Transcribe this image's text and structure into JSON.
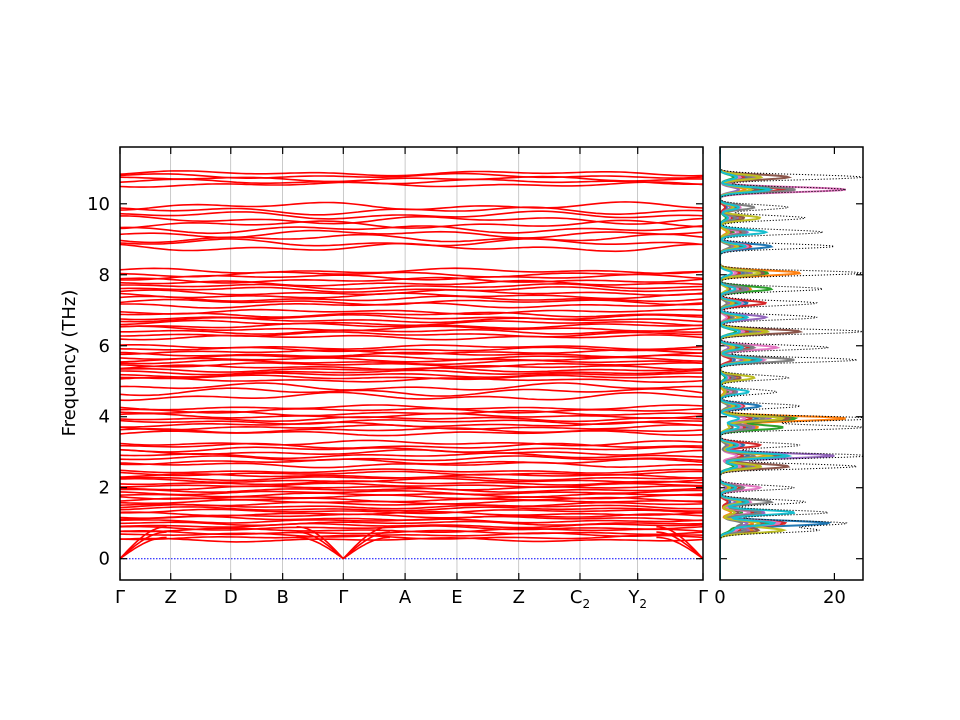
{
  "chart_data": [
    {
      "type": "line",
      "panel": "band-structure",
      "ylabel": "Frequency (THz)",
      "ylim": [
        -0.6,
        11.6
      ],
      "yticks": [
        0,
        2,
        4,
        6,
        8,
        10
      ],
      "kpath_labels": [
        {
          "text": "Γ",
          "sub": "",
          "x": 0
        },
        {
          "text": "Z",
          "sub": "",
          "x": 0.087
        },
        {
          "text": "D",
          "sub": "",
          "x": 0.19
        },
        {
          "text": "B",
          "sub": "",
          "x": 0.279
        },
        {
          "text": "Γ",
          "sub": "",
          "x": 0.383
        },
        {
          "text": "A",
          "sub": "",
          "x": 0.489
        },
        {
          "text": "E",
          "sub": "",
          "x": 0.578
        },
        {
          "text": "Z",
          "sub": "",
          "x": 0.684
        },
        {
          "text": "C",
          "sub": "2",
          "x": 0.789
        },
        {
          "text": "Y",
          "sub": "2",
          "x": 0.888
        },
        {
          "text": "Γ",
          "sub": "",
          "x": 1
        }
      ],
      "band_color": "#ff0000",
      "zero_line_color": "#0000ff",
      "band_groups": [
        {
          "range": [
            0.5,
            2.5
          ],
          "count": 30
        },
        {
          "range": [
            2.6,
            3.3
          ],
          "count": 8
        },
        {
          "range": [
            3.5,
            4.3
          ],
          "count": 10
        },
        {
          "range": [
            4.5,
            4.9
          ],
          "count": 3
        },
        {
          "range": [
            5.0,
            6.0
          ],
          "count": 14
        },
        {
          "range": [
            6.2,
            7.0
          ],
          "count": 10
        },
        {
          "range": [
            7.1,
            8.15
          ],
          "count": 12
        },
        {
          "range": [
            8.7,
            10.0
          ],
          "count": 10
        },
        {
          "range": [
            10.5,
            10.9
          ],
          "count": 5
        }
      ],
      "acoustic_endpoints": [
        0.6,
        0.75,
        0.9
      ]
    },
    {
      "type": "line",
      "panel": "dos",
      "orientation": "horizontal",
      "xlim": [
        0,
        25
      ],
      "xticks": [
        0,
        20
      ],
      "ylim": [
        -0.6,
        11.6
      ],
      "total_dos_style": "dotted",
      "total_dos_color": "#000000",
      "pdos_colors": [
        "#1f77b4",
        "#ff7f0e",
        "#2ca02c",
        "#d62728",
        "#9467bd",
        "#8c564b",
        "#e377c2",
        "#7f7f7f",
        "#bcbd22",
        "#17becf"
      ],
      "peaks": [
        {
          "f": 1.0,
          "total": 22,
          "partial": 19
        },
        {
          "f": 1.3,
          "total": 19,
          "partial": 13
        },
        {
          "f": 0.8,
          "total": 17,
          "partial": 11
        },
        {
          "f": 1.6,
          "total": 15,
          "partial": 9
        },
        {
          "f": 2.0,
          "total": 13,
          "partial": 7
        },
        {
          "f": 2.6,
          "total": 24,
          "partial": 12
        },
        {
          "f": 2.9,
          "total": 26,
          "partial": 20
        },
        {
          "f": 3.2,
          "total": 14,
          "partial": 7
        },
        {
          "f": 3.7,
          "total": 25,
          "partial": 11
        },
        {
          "f": 3.95,
          "total": 27,
          "partial": 22
        },
        {
          "f": 4.3,
          "total": 14,
          "partial": 7
        },
        {
          "f": 4.7,
          "total": 10,
          "partial": 5
        },
        {
          "f": 5.1,
          "total": 12,
          "partial": 6
        },
        {
          "f": 5.6,
          "total": 24,
          "partial": 13
        },
        {
          "f": 5.95,
          "total": 19,
          "partial": 10
        },
        {
          "f": 6.4,
          "total": 25,
          "partial": 14
        },
        {
          "f": 6.8,
          "total": 17,
          "partial": 8
        },
        {
          "f": 7.2,
          "total": 17,
          "partial": 8
        },
        {
          "f": 7.6,
          "total": 18,
          "partial": 9
        },
        {
          "f": 8.05,
          "total": 25,
          "partial": 14
        },
        {
          "f": 8.8,
          "total": 20,
          "partial": 9
        },
        {
          "f": 9.2,
          "total": 18,
          "partial": 8
        },
        {
          "f": 9.6,
          "total": 15,
          "partial": 7
        },
        {
          "f": 9.9,
          "total": 12,
          "partial": 6
        },
        {
          "f": 10.4,
          "total": 22,
          "partial": 22
        },
        {
          "f": 10.75,
          "total": 25,
          "partial": 12
        }
      ]
    }
  ]
}
